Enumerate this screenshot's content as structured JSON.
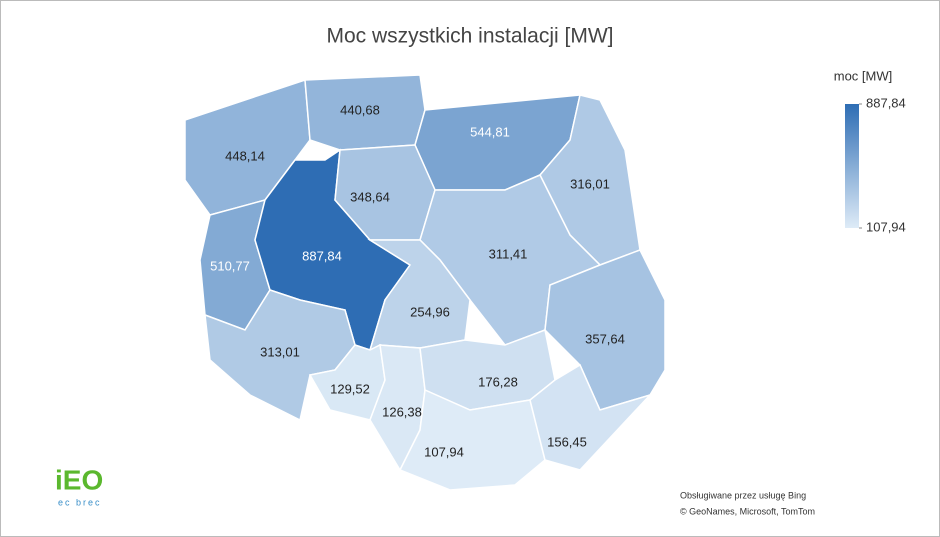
{
  "chart_data": {
    "type": "choropleth",
    "title": "Moc wszystkich instalacji [MW]",
    "values": [
      448.14,
      440.68,
      544.81,
      316.01,
      510.77,
      887.84,
      348.64,
      311.41,
      254.96,
      357.64,
      313.01,
      129.52,
      126.38,
      176.28,
      107.94,
      156.45
    ],
    "value_labels": [
      "448,14",
      "440,68",
      "544,81",
      "316,01",
      "510,77",
      "887,84",
      "348,64",
      "311,41",
      "254,96",
      "357,64",
      "313,01",
      "129,52",
      "126,38",
      "176,28",
      "107,94",
      "156,45"
    ],
    "legend": {
      "title": "moc [MW]",
      "ticks": [
        {
          "value": 887.84,
          "label": "887,84"
        },
        {
          "value": 107.94,
          "label": "107,94"
        }
      ],
      "colors": [
        "#deebf7",
        "#2e6db4"
      ]
    }
  },
  "attribution": [
    "Obsługiwane przez usługę Bing",
    "© GeoNames, Microsoft, TomTom"
  ],
  "logo": {
    "text": "iEO",
    "subtitle": "ec brec"
  }
}
